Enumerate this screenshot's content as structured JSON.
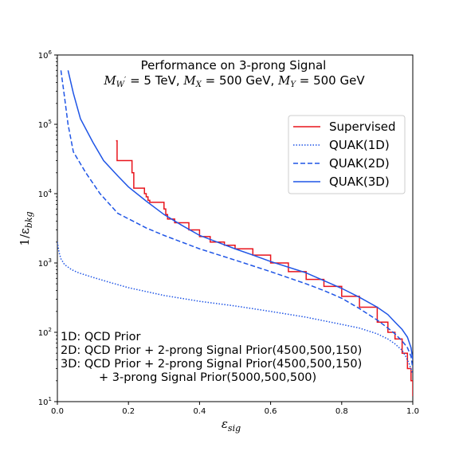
{
  "chart_data": {
    "type": "line",
    "title": "Performance on 3-prong Signal",
    "subtitle": "M_W' = 5 TeV, M_X = 500 GeV, M_Y = 500 GeV",
    "subtitle_parts": {
      "m": "M",
      "w_sub": "W",
      "w_prime": "′",
      "w_val": " = 5 TeV, ",
      "x_sub": "X",
      "x_val": " = 500 GeV, ",
      "y_sub": "Y",
      "y_val": " = 500 GeV"
    },
    "xlabel": "ε",
    "xlabel_sub": "sig",
    "ylabel": "1/ε",
    "ylabel_sub": "bkg",
    "xlim": [
      0.0,
      1.0
    ],
    "ylim": [
      10,
      1000000
    ],
    "yscale": "log",
    "xticks": [
      "0.0",
      "0.2",
      "0.4",
      "0.6",
      "0.8",
      "1.0"
    ],
    "yticks": [
      {
        "value": 10,
        "base": "10",
        "exp": "1"
      },
      {
        "value": 100,
        "base": "10",
        "exp": "2"
      },
      {
        "value": 1000,
        "base": "10",
        "exp": "3"
      },
      {
        "value": 10000,
        "base": "10",
        "exp": "4"
      },
      {
        "value": 100000,
        "base": "10",
        "exp": "5"
      },
      {
        "value": 1000000,
        "base": "10",
        "exp": "6"
      }
    ],
    "legend_position": "upper-right",
    "annotations": [
      "1D: QCD Prior",
      "2D: QCD Prior + 2-prong Signal Prior(4500,500,150)",
      "3D: QCD Prior + 2-prong Signal Prior(4500,500,150)",
      "+ 3-prong Signal Prior(5000,500,500)"
    ],
    "series": [
      {
        "name": "Supervised",
        "color": "#e8141c",
        "style": "solid",
        "step": true,
        "x": [
          0.165,
          0.168,
          0.21,
          0.215,
          0.225,
          0.245,
          0.25,
          0.255,
          0.26,
          0.3,
          0.305,
          0.31,
          0.33,
          0.37,
          0.4,
          0.43,
          0.47,
          0.5,
          0.55,
          0.6,
          0.65,
          0.7,
          0.75,
          0.8,
          0.85,
          0.9,
          0.93,
          0.95,
          0.97,
          0.985,
          0.995,
          1.0
        ],
        "y": [
          58000,
          30000,
          20000,
          12000,
          12000,
          10000,
          9000,
          8000,
          7500,
          6000,
          5000,
          4300,
          3800,
          3000,
          2400,
          2000,
          1800,
          1600,
          1300,
          1000,
          750,
          580,
          460,
          330,
          230,
          140,
          100,
          80,
          50,
          30,
          20,
          12
        ]
      },
      {
        "name": "QUAK(1D)",
        "color": "#1f55e6",
        "style": "dotted",
        "x": [
          0.0,
          0.005,
          0.01,
          0.02,
          0.04,
          0.06,
          0.1,
          0.15,
          0.2,
          0.3,
          0.4,
          0.5,
          0.6,
          0.7,
          0.8,
          0.85,
          0.9,
          0.93,
          0.95,
          0.97,
          0.98,
          0.99,
          1.0
        ],
        "y": [
          2000,
          1400,
          1150,
          950,
          800,
          720,
          620,
          520,
          440,
          340,
          280,
          240,
          200,
          165,
          130,
          115,
          95,
          80,
          68,
          55,
          45,
          35,
          25
        ]
      },
      {
        "name": "QUAK(2D)",
        "color": "#1f55e6",
        "style": "dashed",
        "x": [
          0.01,
          0.02,
          0.03,
          0.045,
          0.08,
          0.12,
          0.17,
          0.25,
          0.3,
          0.4,
          0.5,
          0.6,
          0.7,
          0.75,
          0.8,
          0.85,
          0.9,
          0.93,
          0.95,
          0.97,
          0.985,
          0.995,
          1.0
        ],
        "y": [
          600000,
          250000,
          100000,
          40000,
          20000,
          10000,
          5200,
          3200,
          2500,
          1600,
          1100,
          750,
          500,
          400,
          310,
          220,
          150,
          115,
          95,
          75,
          60,
          45,
          30
        ]
      },
      {
        "name": "QUAK(3D)",
        "color": "#1f55e6",
        "style": "solid",
        "x": [
          0.03,
          0.045,
          0.065,
          0.1,
          0.13,
          0.17,
          0.2,
          0.25,
          0.3,
          0.35,
          0.4,
          0.45,
          0.5,
          0.55,
          0.6,
          0.7,
          0.8,
          0.85,
          0.9,
          0.93,
          0.95,
          0.97,
          0.985,
          0.995,
          1.0
        ],
        "y": [
          600000,
          280000,
          120000,
          55000,
          30000,
          18000,
          12500,
          7800,
          5000,
          3500,
          2500,
          2000,
          1600,
          1300,
          1050,
          720,
          430,
          320,
          230,
          180,
          140,
          110,
          85,
          60,
          40
        ]
      }
    ]
  }
}
